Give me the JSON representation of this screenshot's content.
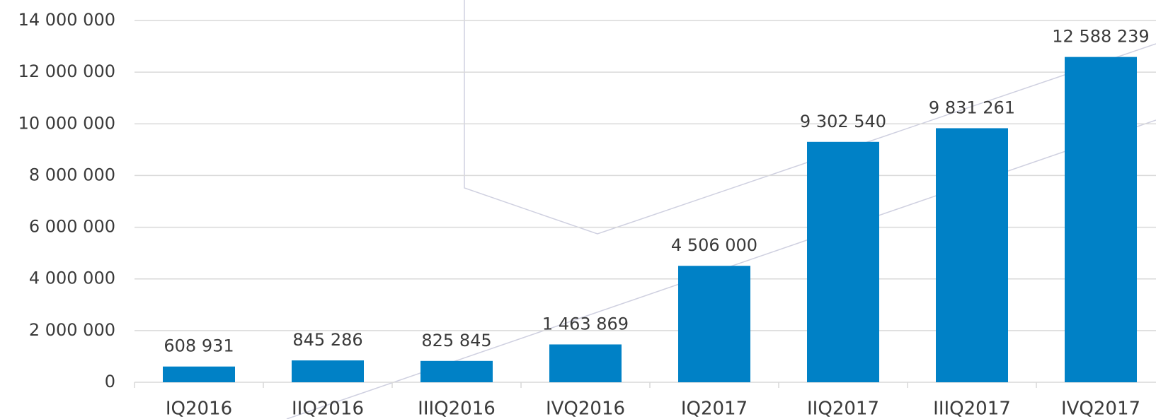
{
  "chart_data": {
    "type": "bar",
    "categories": [
      "IQ2016",
      "IIQ2016",
      "IIIQ2016",
      "IVQ2016",
      "IQ2017",
      "IIQ2017",
      "IIIQ2017",
      "IVQ2017"
    ],
    "values": [
      608931,
      845286,
      825845,
      1463869,
      4506000,
      9302540,
      9831261,
      12588239
    ],
    "value_labels": [
      "608 931",
      "845 286",
      "825 845",
      "1 463 869",
      "4 506 000",
      "9 302 540",
      "9 831 261",
      "12 588 239"
    ],
    "color": "#0081c6",
    "ylim": [
      0,
      14000000
    ],
    "yticks": [
      0,
      {
        "value": 2000000,
        "label": "2 000 000"
      },
      {
        "value": 4000000,
        "label": "4 000 000"
      },
      {
        "value": 6000000,
        "label": "6 000 000"
      },
      {
        "value": 8000000,
        "label": "8 000 000"
      },
      {
        "value": 10000000,
        "label": "10 000 000"
      },
      {
        "value": 12000000,
        "label": "12 000 000"
      },
      {
        "value": 14000000,
        "label": "14 000 000"
      }
    ],
    "grid": true
  }
}
